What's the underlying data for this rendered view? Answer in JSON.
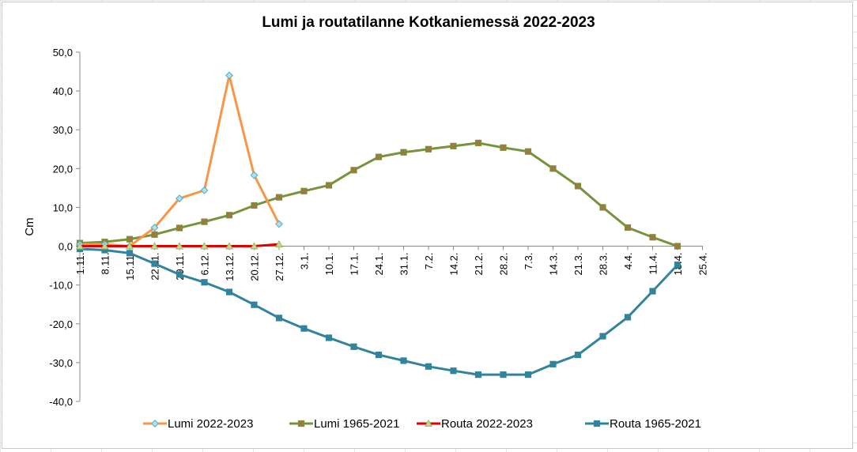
{
  "chart_data": {
    "type": "line",
    "title": "Lumi ja routatilanne Kotkaniemessä 2022-2023",
    "ylabel": "Cm",
    "xlabel": "",
    "ylim": [
      -40,
      50
    ],
    "yticks": [
      "-40,0",
      "-30,0",
      "-20,0",
      "-10,0",
      "0,0",
      "10,0",
      "20,0",
      "30,0",
      "40,0",
      "50,0"
    ],
    "ytick_values": [
      -40,
      -30,
      -20,
      -10,
      0,
      10,
      20,
      30,
      40,
      50
    ],
    "categories": [
      "1.11.",
      "8.11.",
      "15.11.",
      "22.11.",
      "29.11.",
      "6.12.",
      "13.12.",
      "20.12.",
      "27.12.",
      "3.1.",
      "10.1.",
      "17.1.",
      "24.1.",
      "31.1.",
      "7.2.",
      "14.2.",
      "21.2.",
      "28.2.",
      "7.3.",
      "14.3.",
      "21.3.",
      "28.3.",
      "4.4.",
      "11.4.",
      "18.4.",
      "25.4."
    ],
    "grid": false,
    "legend_position": "bottom",
    "series": [
      {
        "name": "Lumi 2022-2023",
        "color": "#F79646",
        "marker": "diamond",
        "marker_fill": "#B7DEE8",
        "marker_stroke": "#4BACC6",
        "points": [
          [
            0,
            0.5
          ],
          [
            1,
            0.5
          ],
          [
            2,
            0
          ],
          [
            3,
            4.8
          ],
          [
            4,
            12.3
          ],
          [
            5,
            14.4
          ],
          [
            6,
            44
          ],
          [
            7,
            18.3
          ],
          [
            8,
            5.7
          ]
        ]
      },
      {
        "name": "Lumi 1965-2021",
        "color": "#77933C",
        "marker": "square",
        "marker_fill": "#9B7B3F",
        "marker_stroke": "#77933C",
        "points": [
          [
            0,
            0.8
          ],
          [
            1,
            1.1
          ],
          [
            2,
            1.8
          ],
          [
            3,
            3
          ],
          [
            4,
            4.7
          ],
          [
            5,
            6.3
          ],
          [
            6,
            8
          ],
          [
            7,
            10.5
          ],
          [
            8,
            12.6
          ],
          [
            9,
            14.2
          ],
          [
            10,
            15.7
          ],
          [
            11,
            19.6
          ],
          [
            12,
            23
          ],
          [
            13,
            24.2
          ],
          [
            14,
            25
          ],
          [
            15,
            25.8
          ],
          [
            16,
            26.6
          ],
          [
            17,
            25.4
          ],
          [
            18,
            24.4
          ],
          [
            19,
            20
          ],
          [
            20,
            15.5
          ],
          [
            21,
            10
          ],
          [
            22,
            4.8
          ],
          [
            23,
            2.3
          ],
          [
            24,
            0
          ]
        ]
      },
      {
        "name": "Routa 2022-2023",
        "color": "#E00000",
        "marker": "triangle",
        "marker_fill": "#C3D69B",
        "marker_stroke": "#9BBB59",
        "points": [
          [
            0,
            0
          ],
          [
            1,
            0
          ],
          [
            2,
            0
          ],
          [
            3,
            0
          ],
          [
            4,
            0
          ],
          [
            5,
            0
          ],
          [
            6,
            0
          ],
          [
            7,
            0
          ],
          [
            8,
            0.5
          ]
        ]
      },
      {
        "name": "Routa 1965-2021",
        "color": "#31849B",
        "marker": "square",
        "marker_fill": "#31849B",
        "marker_stroke": "#31849B",
        "points": [
          [
            0,
            -0.7
          ],
          [
            1,
            -1
          ],
          [
            2,
            -1.8
          ],
          [
            3,
            -4.5
          ],
          [
            4,
            -7.3
          ],
          [
            5,
            -9.3
          ],
          [
            6,
            -11.8
          ],
          [
            7,
            -15.1
          ],
          [
            8,
            -18.5
          ],
          [
            9,
            -21.2
          ],
          [
            10,
            -23.6
          ],
          [
            11,
            -25.9
          ],
          [
            12,
            -28
          ],
          [
            13,
            -29.5
          ],
          [
            14,
            -31
          ],
          [
            15,
            -32.1
          ],
          [
            16,
            -33.1
          ],
          [
            17,
            -33.1
          ],
          [
            18,
            -33.1
          ],
          [
            19,
            -30.4
          ],
          [
            20,
            -28
          ],
          [
            21,
            -23.2
          ],
          [
            22,
            -18.3
          ],
          [
            23,
            -11.6
          ],
          [
            24,
            -4.8
          ]
        ]
      }
    ]
  }
}
